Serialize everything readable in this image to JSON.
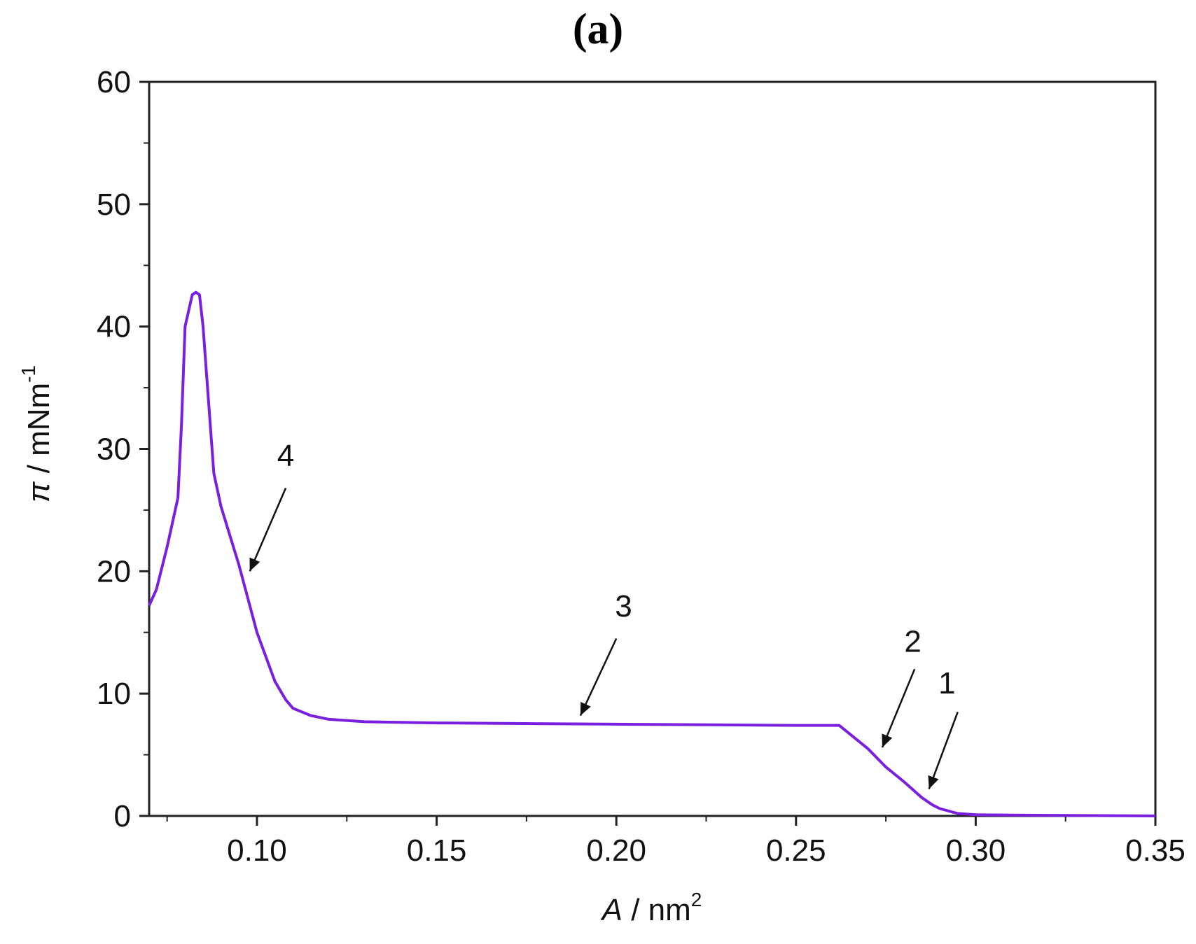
{
  "chart_data": {
    "type": "line",
    "panel_label": "(a)",
    "xlabel": {
      "italic": "A",
      "text": " / nm",
      "sup": "2"
    },
    "ylabel": {
      "italic": "π",
      "text": " / mNm",
      "sup": "-1"
    },
    "xlim": [
      0.07,
      0.35
    ],
    "ylim": [
      0,
      60
    ],
    "xticks": [
      0.1,
      0.15,
      0.2,
      0.25,
      0.3,
      0.35
    ],
    "xtick_labels": [
      "0.10",
      "0.15",
      "0.20",
      "0.25",
      "0.30",
      "0.35"
    ],
    "yticks": [
      0,
      10,
      20,
      30,
      40,
      50,
      60
    ],
    "ytick_labels": [
      "0",
      "10",
      "20",
      "30",
      "40",
      "50",
      "60"
    ],
    "grid": false,
    "line_color": "#7a1fe0",
    "series": [
      {
        "x": [
          0.07,
          0.072,
          0.075,
          0.078,
          0.079,
          0.08,
          0.082,
          0.083,
          0.084,
          0.085,
          0.086,
          0.088,
          0.09,
          0.095,
          0.1,
          0.105,
          0.108,
          0.11,
          0.115,
          0.12,
          0.125,
          0.13,
          0.15,
          0.2,
          0.25,
          0.262,
          0.27,
          0.275,
          0.28,
          0.285,
          0.288,
          0.29,
          0.295,
          0.3,
          0.32,
          0.35
        ],
        "y": [
          17.2,
          18.5,
          22.0,
          26.0,
          32.0,
          40.0,
          42.6,
          42.8,
          42.6,
          40.0,
          36.0,
          28.0,
          25.3,
          20.5,
          15.0,
          11.0,
          9.5,
          8.8,
          8.2,
          7.9,
          7.8,
          7.7,
          7.6,
          7.5,
          7.4,
          7.4,
          5.5,
          4.0,
          2.8,
          1.5,
          0.9,
          0.6,
          0.2,
          0.1,
          0.05,
          0.0
        ]
      }
    ],
    "annotations": [
      {
        "label": "1",
        "text_at": [
          0.292,
          10.0
        ],
        "arrow_from": [
          0.295,
          8.5
        ],
        "arrow_to": [
          0.287,
          2.2
        ]
      },
      {
        "label": "2",
        "text_at": [
          0.2825,
          13.4
        ],
        "arrow_from": [
          0.283,
          12.0
        ],
        "arrow_to": [
          0.274,
          5.6
        ]
      },
      {
        "label": "3",
        "text_at": [
          0.202,
          16.3
        ],
        "arrow_from": [
          0.2,
          14.5
        ],
        "arrow_to": [
          0.19,
          8.2
        ]
      },
      {
        "label": "4",
        "text_at": [
          0.108,
          28.6
        ],
        "arrow_from": [
          0.108,
          26.8
        ],
        "arrow_to": [
          0.098,
          20.0
        ]
      }
    ]
  }
}
